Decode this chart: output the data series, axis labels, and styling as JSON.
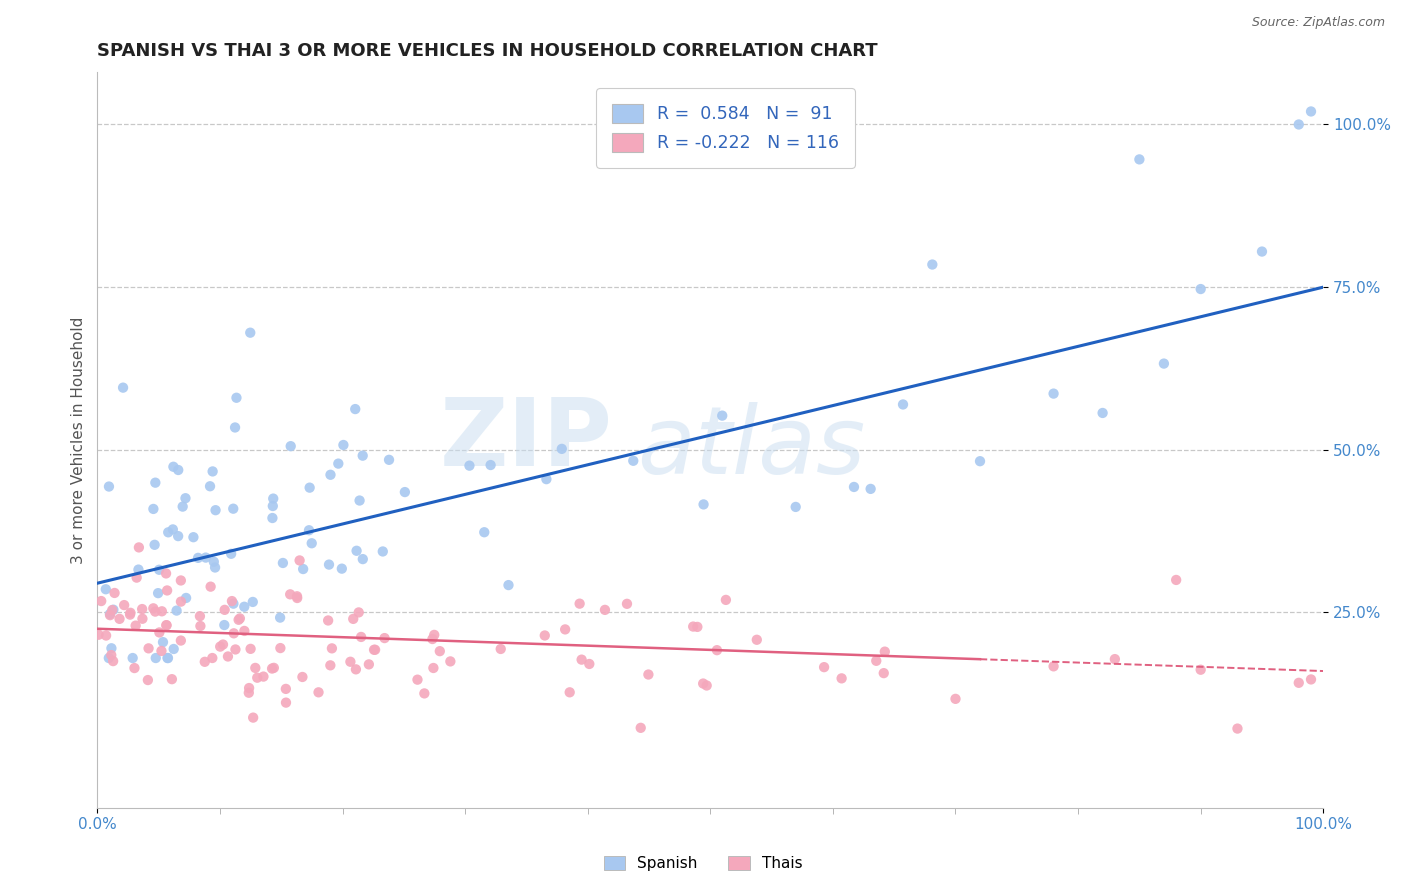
{
  "title": "SPANISH VS THAI 3 OR MORE VEHICLES IN HOUSEHOLD CORRELATION CHART",
  "source": "Source: ZipAtlas.com",
  "ylabel": "3 or more Vehicles in Household",
  "xlim": [
    0.0,
    1.0
  ],
  "ylim": [
    -0.05,
    1.08
  ],
  "xtick_labels": [
    "0.0%",
    "100.0%"
  ],
  "ytick_labels": [
    "25.0%",
    "50.0%",
    "75.0%",
    "100.0%"
  ],
  "ytick_positions": [
    0.25,
    0.5,
    0.75,
    1.0
  ],
  "spanish_color": "#a8c8f0",
  "thai_color": "#f4a8bc",
  "spanish_line_color": "#2060c0",
  "thai_line_color": "#e06080",
  "spanish_R": 0.584,
  "spanish_N": 91,
  "thai_R": -0.222,
  "thai_N": 116,
  "title_fontsize": 13,
  "label_fontsize": 11,
  "tick_fontsize": 11,
  "background_color": "#ffffff",
  "grid_color": "#c8c8c8"
}
